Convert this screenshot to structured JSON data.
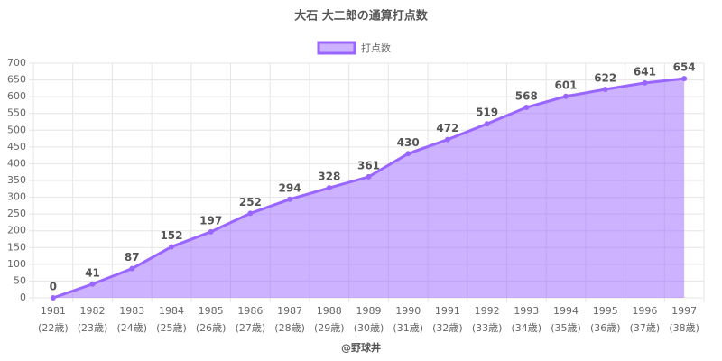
{
  "chart_data": {
    "type": "line",
    "title": "大石 大二郎の通算打点数",
    "footer": "@野球丼",
    "categories": [
      [
        "1981",
        "(22歳)"
      ],
      [
        "1982",
        "(23歳)"
      ],
      [
        "1983",
        "(24歳)"
      ],
      [
        "1984",
        "(25歳)"
      ],
      [
        "1985",
        "(26歳)"
      ],
      [
        "1986",
        "(27歳)"
      ],
      [
        "1987",
        "(28歳)"
      ],
      [
        "1988",
        "(29歳)"
      ],
      [
        "1989",
        "(30歳)"
      ],
      [
        "1990",
        "(31歳)"
      ],
      [
        "1991",
        "(32歳)"
      ],
      [
        "1992",
        "(33歳)"
      ],
      [
        "1993",
        "(34歳)"
      ],
      [
        "1994",
        "(35歳)"
      ],
      [
        "1995",
        "(36歳)"
      ],
      [
        "1996",
        "(37歳)"
      ],
      [
        "1997",
        "(38歳)"
      ]
    ],
    "series": [
      {
        "name": "打点数",
        "color": "#9966ff",
        "values": [
          0,
          41,
          87,
          152,
          197,
          252,
          294,
          328,
          361,
          430,
          472,
          519,
          568,
          601,
          622,
          641,
          654
        ]
      }
    ],
    "ylim": [
      0,
      700
    ],
    "yticks": [
      0,
      50,
      100,
      150,
      200,
      250,
      300,
      350,
      400,
      450,
      500,
      550,
      600,
      650,
      700
    ],
    "grid": true,
    "legend": "top"
  }
}
